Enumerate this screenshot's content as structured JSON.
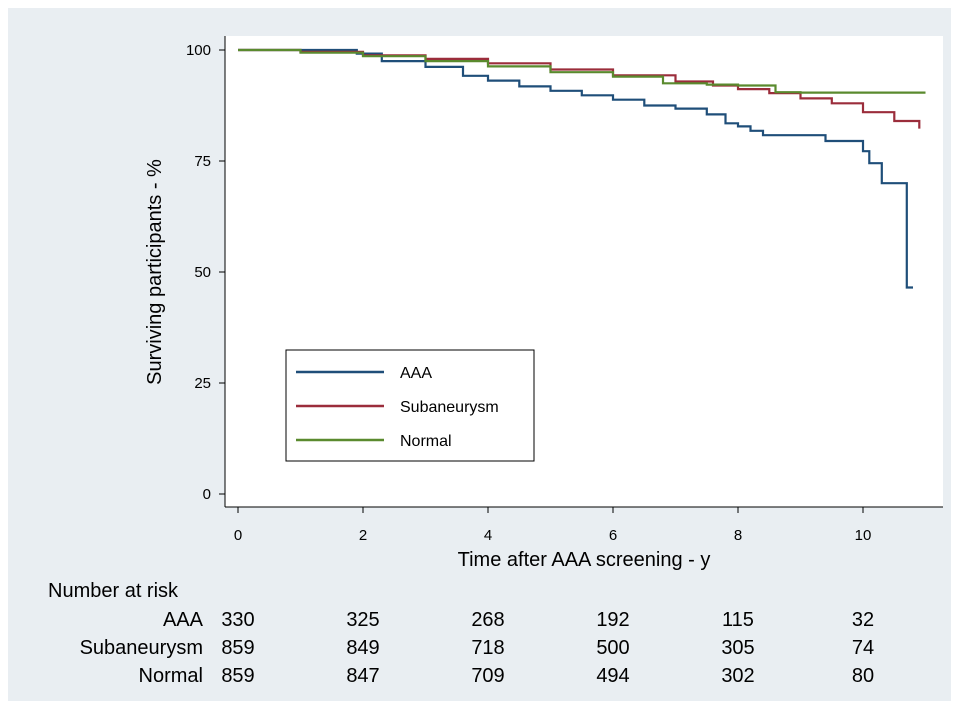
{
  "chart_data": {
    "type": "line",
    "xlabel": "Time after AAA screening - y",
    "ylabel": "Surviving participants - %",
    "xlim": [
      0,
      11
    ],
    "ylim": [
      0,
      100
    ],
    "xticks": [
      0,
      2,
      4,
      6,
      8,
      10
    ],
    "yticks": [
      0,
      25,
      50,
      75,
      100
    ],
    "grid": false,
    "legend_position": "lower-left",
    "series": [
      {
        "name": "AAA",
        "color": "#1f4e79",
        "step": true,
        "x": [
          0,
          1.9,
          2.3,
          3.0,
          3.6,
          4.0,
          4.5,
          5.0,
          5.5,
          6.0,
          6.5,
          7.0,
          7.5,
          7.8,
          8.0,
          8.2,
          8.4,
          9.0,
          9.4,
          10.0,
          10.1,
          10.3,
          10.45,
          10.7,
          10.8
        ],
        "y": [
          100,
          99.2,
          97.5,
          96.2,
          94.2,
          93.1,
          91.8,
          90.8,
          89.8,
          88.8,
          87.5,
          86.8,
          85.5,
          83.5,
          82.8,
          81.8,
          80.8,
          80.8,
          79.5,
          77.2,
          74.5,
          70.0,
          70.0,
          46.5,
          46.5
        ]
      },
      {
        "name": "Subaneurysm",
        "color": "#9b2d3b",
        "step": true,
        "x": [
          0,
          1.0,
          2.0,
          3.0,
          4.0,
          5.0,
          6.0,
          7.0,
          7.6,
          8.0,
          8.5,
          9.0,
          9.5,
          10.0,
          10.5,
          10.9
        ],
        "y": [
          100,
          99.6,
          98.8,
          98.0,
          97.0,
          95.6,
          94.3,
          92.9,
          92.0,
          91.2,
          90.3,
          89.1,
          88.0,
          86.0,
          84.0,
          82.3
        ]
      },
      {
        "name": "Normal",
        "color": "#5a8a2e",
        "step": true,
        "x": [
          0,
          1.0,
          2.0,
          3.0,
          4.0,
          5.0,
          6.0,
          6.8,
          7.5,
          8.0,
          8.6,
          9.0,
          10.0,
          11.0
        ],
        "y": [
          100,
          99.4,
          98.6,
          97.5,
          96.3,
          95.0,
          94.0,
          92.5,
          92.2,
          92.0,
          90.5,
          90.4,
          90.4,
          90.4
        ]
      }
    ],
    "number_at_risk": {
      "title": "Number at risk",
      "time_points": [
        0,
        2,
        4,
        6,
        8,
        10
      ],
      "rows": [
        {
          "label": "AAA",
          "values": [
            "330",
            "325",
            "268",
            "192",
            "115",
            "32"
          ]
        },
        {
          "label": "Subaneurysm",
          "values": [
            "859",
            "849",
            "718",
            "500",
            "305",
            "74"
          ]
        },
        {
          "label": "Normal",
          "values": [
            "859",
            "847",
            "709",
            "494",
            "302",
            "80"
          ]
        }
      ]
    }
  }
}
